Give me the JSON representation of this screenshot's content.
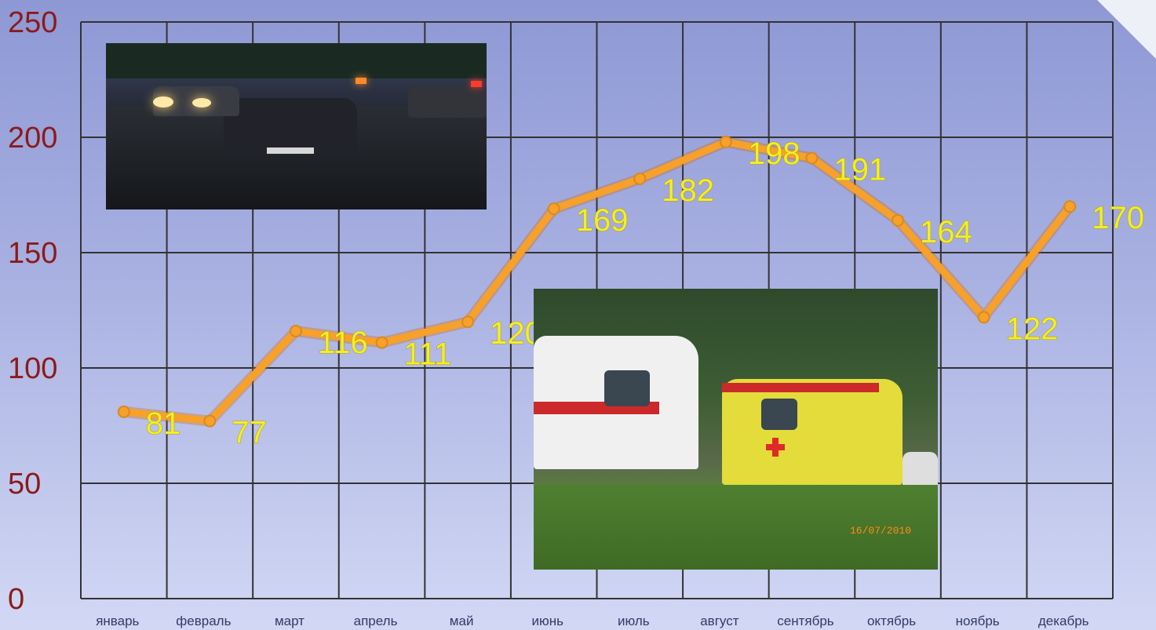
{
  "chart_data": {
    "type": "line",
    "title": "",
    "xlabel": "",
    "ylabel": "",
    "categories": [
      "январь",
      "февраль",
      "март",
      "апрель",
      "май",
      "июнь",
      "июль",
      "август",
      "сентябрь",
      "октябрь",
      "ноябрь",
      "декабрь"
    ],
    "series": [
      {
        "values": [
          81,
          77,
          116,
          111,
          120,
          169,
          182,
          198,
          191,
          164,
          122,
          170
        ]
      }
    ],
    "ylim": [
      0,
      250
    ],
    "yticks": [
      "0",
      "50",
      "100",
      "150",
      "200",
      "250"
    ],
    "grid": true,
    "legend": "none",
    "line_color": "#f7a02a",
    "label_color": "#f4ef22",
    "axis_label_color": "#8b1a1a"
  },
  "photos": [
    {
      "name": "car-crash-photo"
    },
    {
      "name": "ambulance-photo",
      "stamp": "16/07/2010"
    }
  ]
}
